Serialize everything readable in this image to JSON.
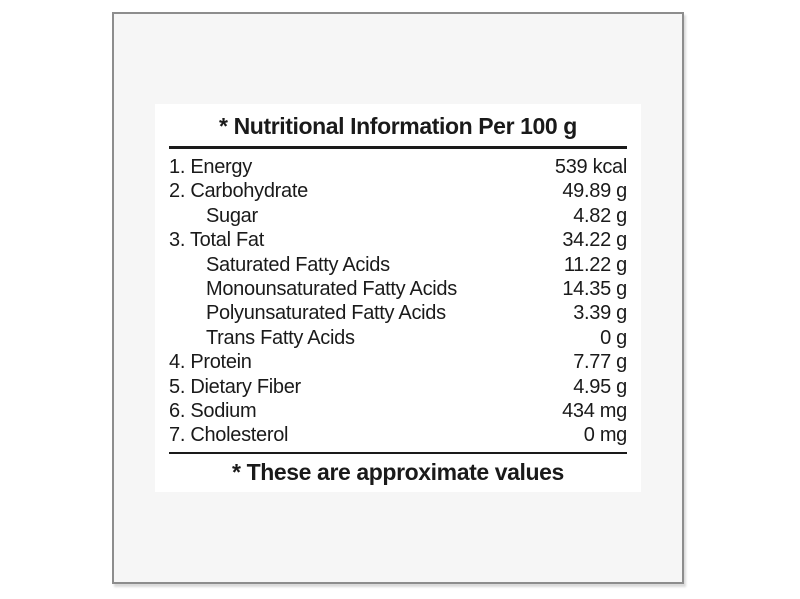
{
  "page": {
    "background": "#ffffff"
  },
  "card": {
    "background": "#f6f6f6",
    "border_color": "#8d8d8d"
  },
  "label": {
    "background": "#ffffff",
    "text_color": "#1a1a1a",
    "rule_color": "#1a1a1a",
    "title": "* Nutritional Information Per 100 g",
    "footer_note": "* These are approximate values",
    "rows": [
      {
        "name": "1. Energy",
        "value": "539 kcal",
        "indent": false
      },
      {
        "name": "2. Carbohydrate",
        "value": "49.89 g",
        "indent": false
      },
      {
        "name": "Sugar",
        "value": "4.82 g",
        "indent": true
      },
      {
        "name": "3. Total Fat",
        "value": "34.22 g",
        "indent": false
      },
      {
        "name": "Saturated Fatty Acids",
        "value": "11.22 g",
        "indent": true
      },
      {
        "name": "Monounsaturated Fatty Acids",
        "value": "14.35 g",
        "indent": true
      },
      {
        "name": "Polyunsaturated Fatty Acids",
        "value": "3.39 g",
        "indent": true
      },
      {
        "name": "Trans Fatty Acids",
        "value": "0 g",
        "indent": true
      },
      {
        "name": "4. Protein",
        "value": "7.77 g",
        "indent": false
      },
      {
        "name": "5. Dietary Fiber",
        "value": "4.95 g",
        "indent": false
      },
      {
        "name": "6. Sodium",
        "value": "434 mg",
        "indent": false
      },
      {
        "name": "7. Cholesterol",
        "value": "0 mg",
        "indent": false
      }
    ]
  }
}
